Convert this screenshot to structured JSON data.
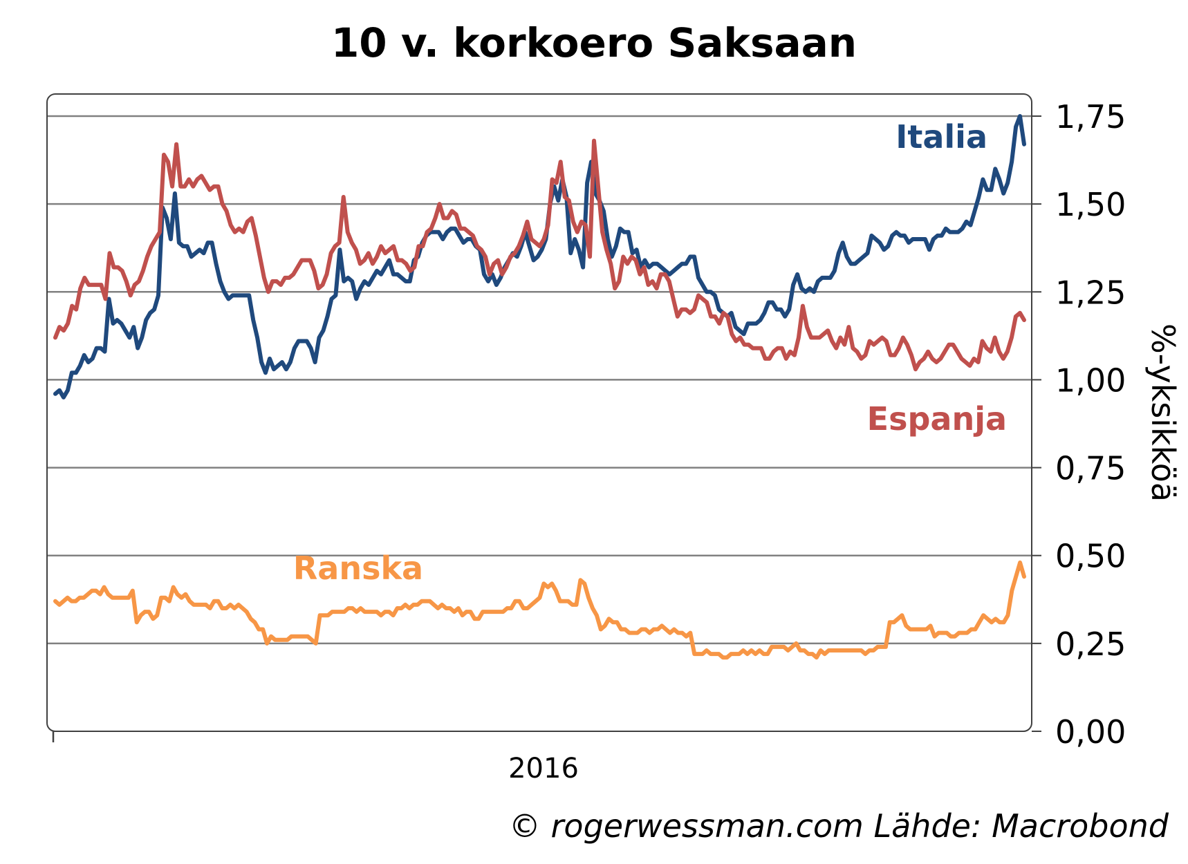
{
  "chart_data": {
    "type": "line",
    "title": "10 v. korkoero Saksaan",
    "ylabel": "%-yksikköä",
    "xlabel": "",
    "x_tick_labels": [
      "2016"
    ],
    "y_ticks": [
      "0,00",
      "0,25",
      "0,50",
      "0,75",
      "1,00",
      "1,25",
      "1,50",
      "1,75"
    ],
    "y_tick_values": [
      0,
      0.25,
      0.5,
      0.75,
      1.0,
      1.25,
      1.5,
      1.75
    ],
    "ylim": [
      0,
      1.8
    ],
    "y_axis_side": "right",
    "grid": "horizontal",
    "series": [
      {
        "name": "Italia",
        "color": "#1f497d",
        "values": [
          0.96,
          0.97,
          0.95,
          0.97,
          1.02,
          1.02,
          1.04,
          1.07,
          1.05,
          1.06,
          1.09,
          1.09,
          1.08,
          1.23,
          1.16,
          1.17,
          1.16,
          1.14,
          1.12,
          1.15,
          1.09,
          1.12,
          1.17,
          1.19,
          1.2,
          1.24,
          1.49,
          1.46,
          1.4,
          1.53,
          1.39,
          1.38,
          1.38,
          1.35,
          1.36,
          1.37,
          1.36,
          1.39,
          1.39,
          1.33,
          1.28,
          1.25,
          1.23,
          1.24,
          1.24,
          1.24,
          1.24,
          1.24,
          1.17,
          1.12,
          1.05,
          1.02,
          1.06,
          1.03,
          1.04,
          1.05,
          1.03,
          1.05,
          1.09,
          1.11,
          1.11,
          1.11,
          1.09,
          1.05,
          1.12,
          1.14,
          1.18,
          1.23,
          1.24,
          1.37,
          1.28,
          1.29,
          1.28,
          1.23,
          1.26,
          1.28,
          1.27,
          1.29,
          1.31,
          1.3,
          1.32,
          1.34,
          1.3,
          1.3,
          1.29,
          1.28,
          1.28,
          1.34,
          1.35,
          1.39,
          1.41,
          1.42,
          1.42,
          1.42,
          1.4,
          1.42,
          1.43,
          1.43,
          1.41,
          1.39,
          1.4,
          1.4,
          1.38,
          1.37,
          1.3,
          1.28,
          1.3,
          1.27,
          1.29,
          1.32,
          1.34,
          1.36,
          1.35,
          1.38,
          1.42,
          1.38,
          1.34,
          1.35,
          1.37,
          1.4,
          1.5,
          1.55,
          1.51,
          1.57,
          1.52,
          1.36,
          1.4,
          1.37,
          1.32,
          1.56,
          1.62,
          1.53,
          1.51,
          1.48,
          1.4,
          1.35,
          1.38,
          1.43,
          1.42,
          1.42,
          1.36,
          1.37,
          1.32,
          1.34,
          1.32,
          1.33,
          1.33,
          1.32,
          1.31,
          1.3,
          1.31,
          1.32,
          1.33,
          1.33,
          1.35,
          1.35,
          1.29,
          1.27,
          1.25,
          1.25,
          1.24,
          1.2,
          1.19,
          1.18,
          1.19,
          1.15,
          1.14,
          1.13,
          1.16,
          1.16,
          1.16,
          1.17,
          1.19,
          1.22,
          1.22,
          1.2,
          1.2,
          1.18,
          1.2,
          1.27,
          1.3,
          1.26,
          1.25,
          1.26,
          1.25,
          1.28,
          1.29,
          1.29,
          1.29,
          1.31,
          1.36,
          1.39,
          1.35,
          1.33,
          1.33,
          1.34,
          1.35,
          1.36,
          1.41,
          1.4,
          1.39,
          1.37,
          1.38,
          1.41,
          1.42,
          1.41,
          1.41,
          1.39,
          1.4,
          1.4,
          1.4,
          1.4,
          1.37,
          1.4,
          1.41,
          1.41,
          1.43,
          1.42,
          1.42,
          1.42,
          1.43,
          1.45,
          1.44,
          1.48,
          1.52,
          1.57,
          1.54,
          1.54,
          1.6,
          1.57,
          1.53,
          1.56,
          1.62,
          1.72,
          1.75,
          1.67
        ]
      },
      {
        "name": "Espanja",
        "color": "#c0504d",
        "values": [
          1.12,
          1.15,
          1.14,
          1.16,
          1.21,
          1.2,
          1.26,
          1.29,
          1.27,
          1.27,
          1.27,
          1.27,
          1.23,
          1.36,
          1.32,
          1.32,
          1.31,
          1.28,
          1.24,
          1.27,
          1.28,
          1.31,
          1.35,
          1.38,
          1.4,
          1.42,
          1.64,
          1.62,
          1.55,
          1.67,
          1.55,
          1.55,
          1.57,
          1.55,
          1.57,
          1.58,
          1.56,
          1.54,
          1.55,
          1.55,
          1.5,
          1.48,
          1.44,
          1.42,
          1.43,
          1.42,
          1.45,
          1.46,
          1.41,
          1.35,
          1.29,
          1.25,
          1.28,
          1.28,
          1.27,
          1.29,
          1.29,
          1.3,
          1.32,
          1.34,
          1.34,
          1.34,
          1.31,
          1.26,
          1.27,
          1.3,
          1.36,
          1.38,
          1.39,
          1.52,
          1.42,
          1.39,
          1.37,
          1.33,
          1.34,
          1.36,
          1.33,
          1.35,
          1.38,
          1.36,
          1.37,
          1.38,
          1.34,
          1.34,
          1.33,
          1.31,
          1.32,
          1.38,
          1.38,
          1.42,
          1.43,
          1.46,
          1.5,
          1.46,
          1.46,
          1.48,
          1.47,
          1.43,
          1.43,
          1.42,
          1.41,
          1.38,
          1.37,
          1.35,
          1.3,
          1.33,
          1.34,
          1.3,
          1.32,
          1.35,
          1.36,
          1.38,
          1.41,
          1.45,
          1.4,
          1.39,
          1.38,
          1.4,
          1.44,
          1.57,
          1.56,
          1.62,
          1.52,
          1.51,
          1.45,
          1.42,
          1.45,
          1.44,
          1.35,
          1.68,
          1.55,
          1.42,
          1.37,
          1.33,
          1.26,
          1.28,
          1.35,
          1.33,
          1.35,
          1.34,
          1.3,
          1.32,
          1.27,
          1.28,
          1.26,
          1.3,
          1.3,
          1.28,
          1.23,
          1.18,
          1.2,
          1.2,
          1.19,
          1.2,
          1.24,
          1.23,
          1.22,
          1.18,
          1.18,
          1.16,
          1.19,
          1.18,
          1.13,
          1.11,
          1.12,
          1.1,
          1.1,
          1.09,
          1.09,
          1.09,
          1.06,
          1.06,
          1.08,
          1.09,
          1.09,
          1.06,
          1.08,
          1.07,
          1.12,
          1.21,
          1.15,
          1.12,
          1.12,
          1.12,
          1.13,
          1.14,
          1.11,
          1.09,
          1.12,
          1.1,
          1.15,
          1.09,
          1.08,
          1.06,
          1.07,
          1.11,
          1.1,
          1.11,
          1.12,
          1.11,
          1.07,
          1.07,
          1.09,
          1.12,
          1.1,
          1.07,
          1.03,
          1.05,
          1.06,
          1.08,
          1.06,
          1.05,
          1.06,
          1.08,
          1.1,
          1.1,
          1.08,
          1.06,
          1.05,
          1.04,
          1.06,
          1.05,
          1.11,
          1.09,
          1.08,
          1.12,
          1.08,
          1.06,
          1.08,
          1.12,
          1.18,
          1.19,
          1.17
        ]
      },
      {
        "name": "Ranska",
        "color": "#f79646",
        "values": [
          0.37,
          0.36,
          0.37,
          0.38,
          0.37,
          0.37,
          0.38,
          0.38,
          0.39,
          0.4,
          0.4,
          0.39,
          0.41,
          0.39,
          0.38,
          0.38,
          0.38,
          0.38,
          0.38,
          0.4,
          0.31,
          0.33,
          0.34,
          0.34,
          0.32,
          0.33,
          0.38,
          0.38,
          0.37,
          0.41,
          0.39,
          0.38,
          0.39,
          0.37,
          0.36,
          0.36,
          0.36,
          0.36,
          0.35,
          0.37,
          0.37,
          0.35,
          0.35,
          0.36,
          0.35,
          0.36,
          0.35,
          0.34,
          0.32,
          0.31,
          0.29,
          0.29,
          0.25,
          0.27,
          0.26,
          0.26,
          0.26,
          0.26,
          0.27,
          0.27,
          0.27,
          0.27,
          0.27,
          0.26,
          0.25,
          0.33,
          0.33,
          0.33,
          0.34,
          0.34,
          0.34,
          0.34,
          0.35,
          0.35,
          0.34,
          0.35,
          0.34,
          0.34,
          0.34,
          0.34,
          0.33,
          0.34,
          0.34,
          0.33,
          0.35,
          0.35,
          0.36,
          0.35,
          0.36,
          0.36,
          0.37,
          0.37,
          0.37,
          0.36,
          0.35,
          0.36,
          0.35,
          0.35,
          0.34,
          0.35,
          0.33,
          0.34,
          0.34,
          0.32,
          0.32,
          0.34,
          0.34,
          0.34,
          0.34,
          0.34,
          0.34,
          0.35,
          0.35,
          0.37,
          0.37,
          0.35,
          0.35,
          0.36,
          0.37,
          0.38,
          0.42,
          0.41,
          0.42,
          0.4,
          0.37,
          0.37,
          0.37,
          0.36,
          0.36,
          0.43,
          0.42,
          0.38,
          0.35,
          0.33,
          0.29,
          0.3,
          0.32,
          0.31,
          0.31,
          0.29,
          0.29,
          0.28,
          0.28,
          0.28,
          0.29,
          0.29,
          0.28,
          0.29,
          0.29,
          0.3,
          0.29,
          0.28,
          0.29,
          0.28,
          0.28,
          0.27,
          0.28,
          0.22,
          0.22,
          0.22,
          0.23,
          0.22,
          0.22,
          0.22,
          0.21,
          0.21,
          0.22,
          0.22,
          0.22,
          0.23,
          0.22,
          0.23,
          0.22,
          0.23,
          0.22,
          0.22,
          0.24,
          0.24,
          0.24,
          0.24,
          0.23,
          0.24,
          0.25,
          0.23,
          0.23,
          0.22,
          0.22,
          0.21,
          0.23,
          0.22,
          0.23,
          0.23,
          0.23,
          0.23,
          0.23,
          0.23,
          0.23,
          0.23,
          0.23,
          0.22,
          0.23,
          0.23,
          0.24,
          0.24,
          0.24,
          0.31,
          0.31,
          0.32,
          0.33,
          0.3,
          0.29,
          0.29,
          0.29,
          0.29,
          0.29,
          0.3,
          0.27,
          0.28,
          0.28,
          0.28,
          0.27,
          0.27,
          0.28,
          0.28,
          0.28,
          0.29,
          0.29,
          0.31,
          0.33,
          0.32,
          0.31,
          0.32,
          0.31,
          0.31,
          0.33,
          0.4,
          0.44,
          0.48,
          0.44
        ]
      }
    ],
    "annotations": [
      "Italia",
      "Espanja",
      "Ranska"
    ]
  },
  "footer": {
    "source": "© rogerwessman.com Lähde: Macrobond"
  },
  "colors": {
    "axis": "#404040",
    "grid": "#808080"
  }
}
